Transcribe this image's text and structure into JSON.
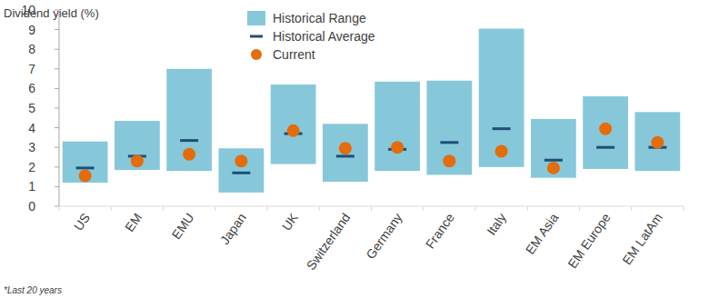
{
  "chart_data": {
    "type": "range",
    "y_label": "Dividend yield (%)",
    "annotation": "*Last 20 years",
    "categories": [
      "US",
      "EM",
      "EMU",
      "Japan",
      "UK",
      "Switzerland",
      "Germany",
      "France",
      "Italy",
      "EM Asia",
      "EM Europe",
      "EM LatAm"
    ],
    "series": [
      {
        "name": "Historical Range",
        "type": "range",
        "color": "#86c8da",
        "values": [
          [
            1.2,
            3.3
          ],
          [
            1.85,
            4.35
          ],
          [
            1.8,
            7.0
          ],
          [
            0.7,
            2.95
          ],
          [
            2.15,
            6.2
          ],
          [
            1.25,
            4.2
          ],
          [
            1.8,
            6.35
          ],
          [
            1.6,
            6.4
          ],
          [
            2.0,
            9.05
          ],
          [
            1.45,
            4.45
          ],
          [
            1.9,
            5.6
          ],
          [
            1.8,
            4.8
          ]
        ]
      },
      {
        "name": "Historical Average",
        "type": "scatter",
        "marker": "dash",
        "color": "#1f4e79",
        "values": [
          1.95,
          2.55,
          3.35,
          1.7,
          3.7,
          2.55,
          2.9,
          3.25,
          3.95,
          2.35,
          3.0,
          3.0
        ]
      },
      {
        "name": "Current",
        "type": "scatter",
        "marker": "circle",
        "color": "#e46c0a",
        "values": [
          1.55,
          2.3,
          2.65,
          2.3,
          3.85,
          2.95,
          3.0,
          2.3,
          2.8,
          1.95,
          3.95,
          3.25
        ]
      }
    ],
    "ylim": [
      0,
      10
    ],
    "yticks": [
      0,
      1,
      2,
      3,
      4,
      5,
      6,
      7,
      8,
      9,
      10
    ],
    "grid": false,
    "legend": "top"
  }
}
